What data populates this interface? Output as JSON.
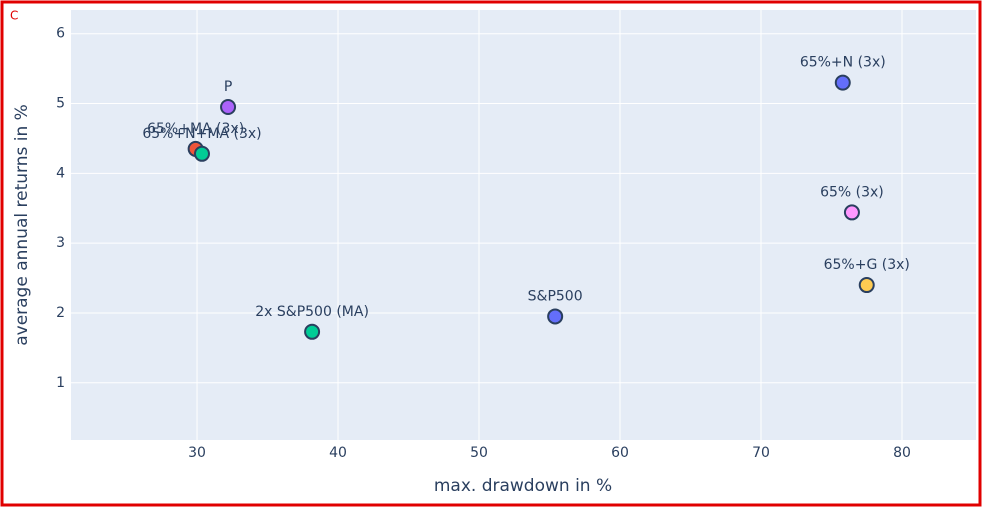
{
  "panel_label": "C",
  "chart_data": {
    "type": "scatter",
    "x_label": "max. drawdown in %",
    "y_label": "average annual returns in %",
    "xlim": [
      21.06,
      85.25
    ],
    "ylim": [
      0.18,
      6.34
    ],
    "xticks": [
      30,
      40,
      50,
      60,
      70,
      80
    ],
    "yticks": [
      1,
      2,
      3,
      4,
      5,
      6
    ],
    "grid": true,
    "series": [
      {
        "name": "P",
        "color": "#ab63fa",
        "x": [
          32.2
        ],
        "values": [
          4.95
        ]
      },
      {
        "name": "65%+MA (3x)",
        "color": "#ef553b",
        "x": [
          29.9
        ],
        "values": [
          4.35
        ]
      },
      {
        "name": "65%+N+MA (3x)",
        "color": "#00cc96",
        "x": [
          30.35
        ],
        "values": [
          4.28
        ]
      },
      {
        "name": "2x S&P500 (MA)",
        "color": "#00cc96",
        "x": [
          38.16
        ],
        "values": [
          1.73
        ]
      },
      {
        "name": "S&P500",
        "color": "#636efa",
        "x": [
          55.4
        ],
        "values": [
          1.95
        ]
      },
      {
        "name": "65%+N (3x)",
        "color": "#636efa",
        "x": [
          75.8
        ],
        "values": [
          5.3
        ]
      },
      {
        "name": "65% (3x)",
        "color": "#ff97ff",
        "x": [
          76.45
        ],
        "values": [
          3.44
        ]
      },
      {
        "name": "65%+G (3x)",
        "color": "#fecb52",
        "x": [
          77.5
        ],
        "values": [
          2.4
        ]
      }
    ]
  }
}
